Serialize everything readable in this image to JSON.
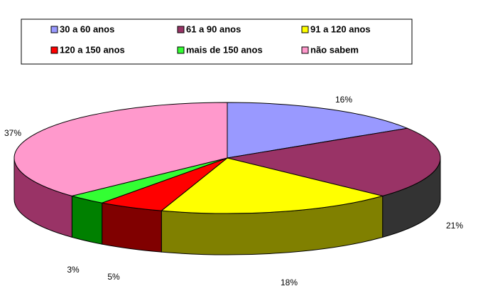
{
  "chart_data": {
    "type": "pie3d",
    "categories": [
      "30 a 60 anos",
      "61 a 90 anos",
      "91 a 120 anos",
      "120 a 150 anos",
      "mais de 150 anos",
      "não sabem"
    ],
    "values": [
      16,
      21,
      18,
      5,
      3,
      37
    ],
    "value_labels": [
      "16%",
      "21%",
      "18%",
      "5%",
      "3%",
      "37%"
    ],
    "colors": [
      "#9999ff",
      "#993366",
      "#ffff00",
      "#ff0000",
      "#33ff33",
      "#ff99cc"
    ],
    "side_colors": [
      "#666699",
      "#333333",
      "#808000",
      "#800000",
      "#008000",
      "#993366"
    ],
    "legend": "top"
  }
}
